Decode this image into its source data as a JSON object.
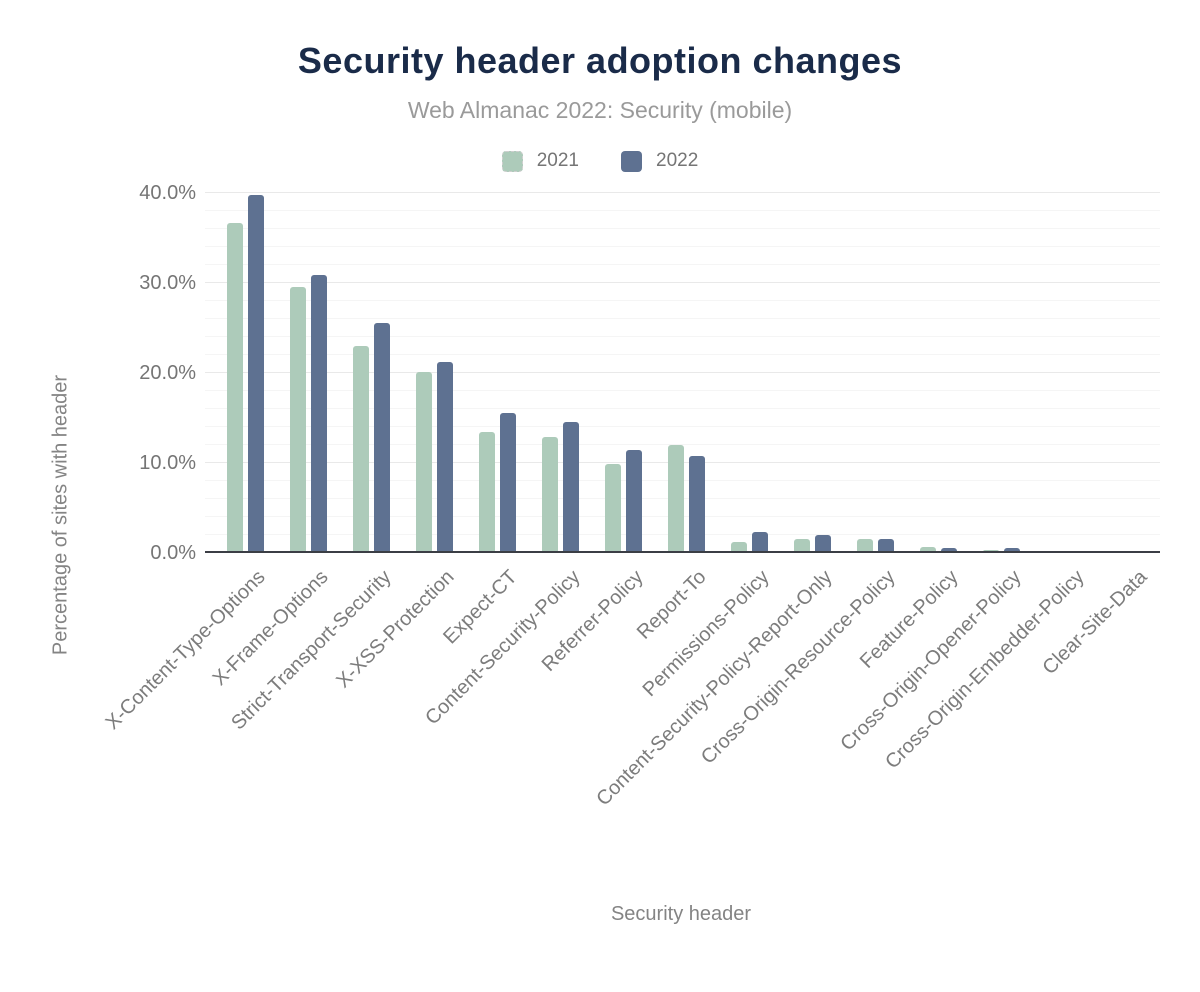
{
  "title": "Security header adoption changes",
  "subtitle": "Web Almanac 2022: Security (mobile)",
  "legend": [
    {
      "label": "2021",
      "color": "#adcbba"
    },
    {
      "label": "2022",
      "color": "#5e7191"
    }
  ],
  "y_axis": {
    "title": "Percentage of sites with header",
    "ticks": [
      "40.0%",
      "30.0%",
      "20.0%",
      "10.0%",
      "0.0%"
    ]
  },
  "x_axis": {
    "title": "Security header"
  },
  "colors": {
    "title_navy": "#1a2b49",
    "series_2021_green": "#adcbba",
    "series_2022_blue": "#5e7191",
    "axis_text_gray": "#757575",
    "axis_line_dark": "#3b3e45"
  },
  "chart_data": {
    "type": "bar",
    "title": "Security header adoption changes",
    "subtitle": "Web Almanac 2022: Security (mobile)",
    "xlabel": "Security header",
    "ylabel": "Percentage of sites with header",
    "ylim": [
      0,
      40
    ],
    "ytick_step": 10,
    "minor_gridline_step": 2,
    "grid": true,
    "legend_position": "top",
    "value_unit": "percent",
    "categories": [
      "X-Content-Type-Options",
      "X-Frame-Options",
      "Strict-Transport-Security",
      "X-XSS-Protection",
      "Expect-CT",
      "Content-Security-Policy",
      "Referrer-Policy",
      "Report-To",
      "Permissions-Policy",
      "Content-Security-Policy-Report-Only",
      "Cross-Origin-Resource-Policy",
      "Feature-Policy",
      "Cross-Origin-Opener-Policy",
      "Cross-Origin-Embedder-Policy",
      "Clear-Site-Data"
    ],
    "series": [
      {
        "name": "2021",
        "color": "#adcbba",
        "values": [
          36.6,
          29.4,
          22.9,
          20.0,
          13.3,
          12.8,
          9.8,
          11.9,
          1.1,
          1.4,
          1.5,
          0.6,
          0.2,
          0.05,
          0.1
        ]
      },
      {
        "name": "2022",
        "color": "#5e7191",
        "values": [
          39.7,
          30.8,
          25.5,
          21.1,
          15.5,
          14.4,
          11.3,
          10.7,
          2.2,
          1.9,
          1.4,
          0.5,
          0.4,
          0.1,
          0.1
        ]
      }
    ]
  }
}
